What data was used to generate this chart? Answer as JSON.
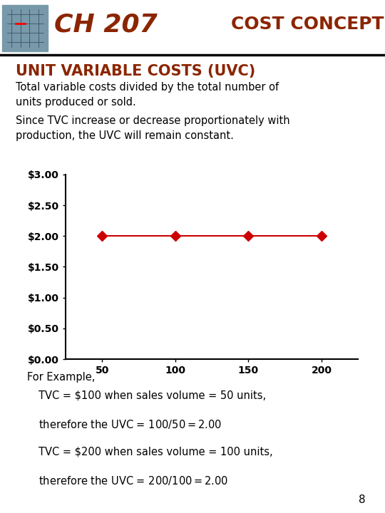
{
  "bg_color": "#ffffff",
  "header_color": "#8B2500",
  "header_line_color": "#000000",
  "ch_text": "CH 207",
  "cost_text": "COST CONCEPTS",
  "title_text": "UNIT VARIABLE COSTS (UVC)",
  "subtitle_text": "Total variable costs divided by the total number of\nunits produced or sold.",
  "body_text1": "Since TVC increase or decrease proportionately with\nproduction, the UVC will remain constant.",
  "x_data": [
    50,
    100,
    150,
    200
  ],
  "y_data": [
    2.0,
    2.0,
    2.0,
    2.0
  ],
  "line_color": "#cc0000",
  "marker_color": "#cc0000",
  "y_ticks": [
    0.0,
    0.5,
    1.0,
    1.5,
    2.0,
    2.5,
    3.0
  ],
  "y_tick_labels": [
    "$0.00",
    "$0.50",
    "$1.00",
    "$1.50",
    "$2.00",
    "$2.50",
    "$3.00"
  ],
  "x_ticks": [
    50,
    100,
    150,
    200
  ],
  "ylim": [
    0,
    3.0
  ],
  "xlim": [
    25,
    225
  ],
  "example_title": "For Example,",
  "example_lines": [
    "TVC = $100 when sales volume = 50 units,",
    "therefore the UVC = $100/50 = $2.00",
    "TVC = $200 when sales volume = 100 units,",
    "therefore the UVC = $200/100 = $2.00"
  ],
  "page_number": "8",
  "header_img_color": "#6699bb",
  "header_bar_color": "#000000"
}
